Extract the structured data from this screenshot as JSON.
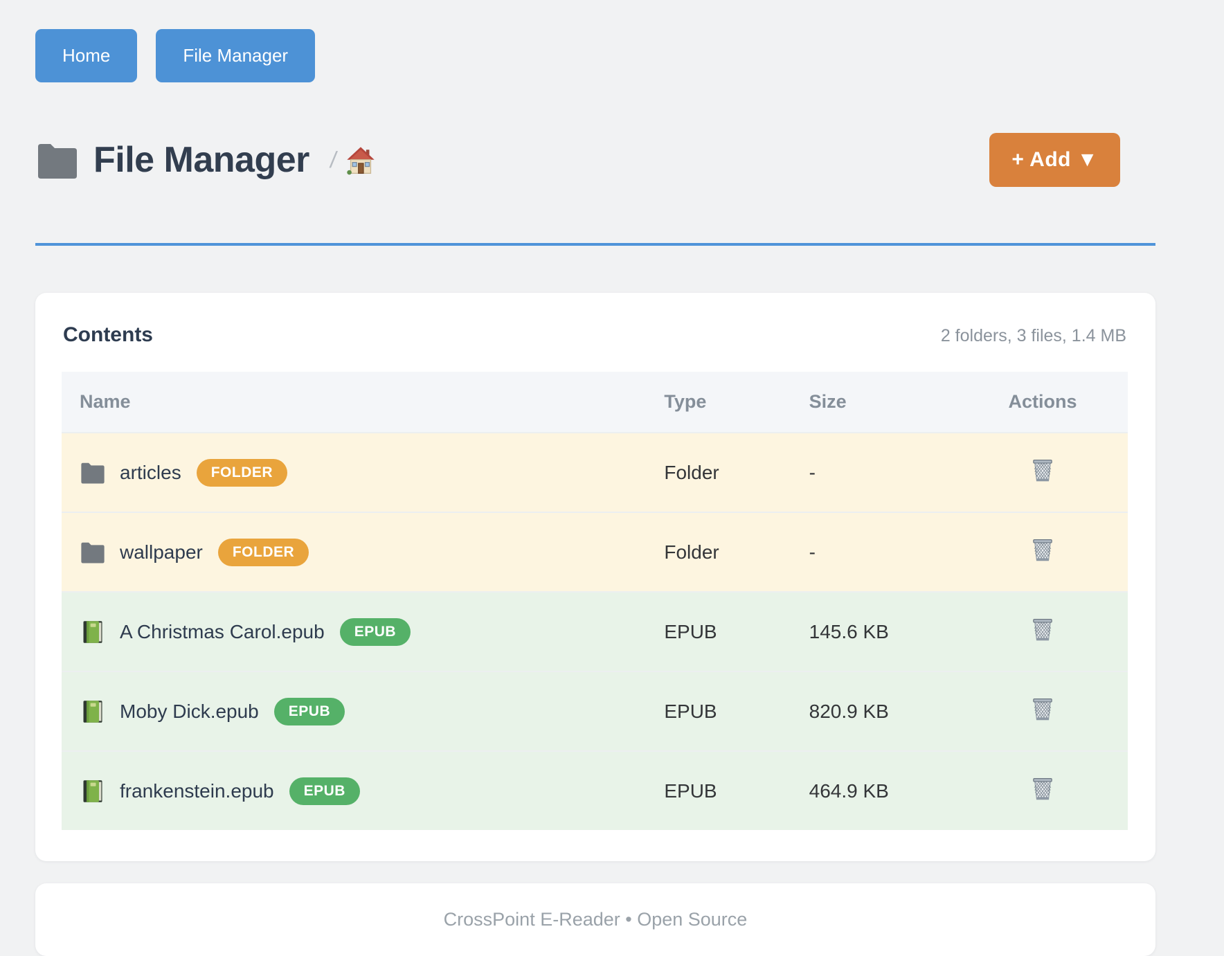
{
  "nav": {
    "home_label": "Home",
    "file_manager_label": "File Manager"
  },
  "header": {
    "title": "File Manager",
    "title_icon": "folder-icon",
    "breadcrumb_separator": "/",
    "breadcrumb_home_icon": "home-icon",
    "add_button_label": "+ Add ▼"
  },
  "contents": {
    "heading": "Contents",
    "summary": "2 folders, 3 files, 1.4 MB",
    "columns": [
      "Name",
      "Type",
      "Size",
      "Actions"
    ],
    "rows": [
      {
        "name": "articles",
        "badge": "FOLDER",
        "type": "Folder",
        "size": "-",
        "kind": "folder",
        "icon": "folder-icon",
        "action_icon": "trash-icon"
      },
      {
        "name": "wallpaper",
        "badge": "FOLDER",
        "type": "Folder",
        "size": "-",
        "kind": "folder",
        "icon": "folder-icon",
        "action_icon": "trash-icon"
      },
      {
        "name": "A Christmas Carol.epub",
        "badge": "EPUB",
        "type": "EPUB",
        "size": "145.6 KB",
        "kind": "epub",
        "icon": "green-book-icon",
        "action_icon": "trash-icon"
      },
      {
        "name": "Moby Dick.epub",
        "badge": "EPUB",
        "type": "EPUB",
        "size": "820.9 KB",
        "kind": "epub",
        "icon": "green-book-icon",
        "action_icon": "trash-icon"
      },
      {
        "name": "frankenstein.epub",
        "badge": "EPUB",
        "type": "EPUB",
        "size": "464.9 KB",
        "kind": "epub",
        "icon": "green-book-icon",
        "action_icon": "trash-icon"
      }
    ]
  },
  "footer": {
    "text": "CrossPoint E-Reader • Open Source"
  },
  "colors": {
    "primary_blue": "#4d92d6",
    "rule_blue": "#4f94d9",
    "accent_orange": "#d9813c",
    "badge_orange": "#e9a43c",
    "badge_green": "#55b168",
    "row_folder_bg": "#fdf5e0",
    "row_epub_bg": "#e8f3e8",
    "table_header_bg": "#f4f6f9",
    "page_bg": "#f1f2f3"
  }
}
